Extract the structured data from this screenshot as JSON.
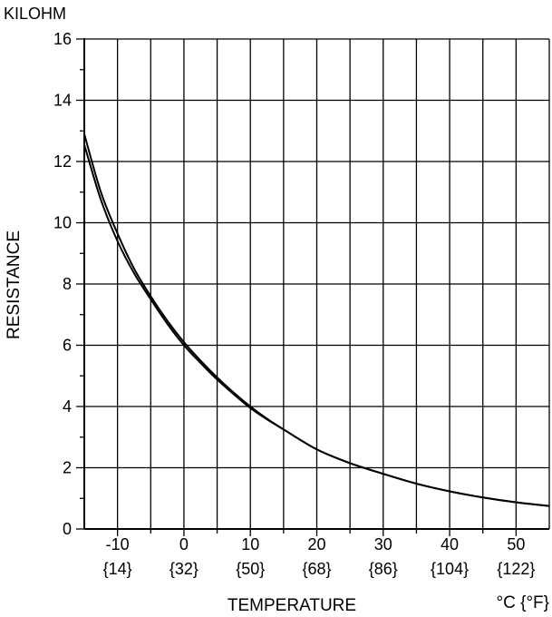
{
  "chart_data": {
    "type": "line",
    "title": "",
    "xlabel": "TEMPERATURE",
    "x_unit_label": "°C {°F}",
    "ylabel": "RESISTANCE",
    "y_unit_label": "KILOHM",
    "xlim": [
      -15,
      55
    ],
    "ylim": [
      0,
      16
    ],
    "grid": true,
    "x_ticks": [
      {
        "value": -10,
        "label": "-10",
        "label_f": "{14}"
      },
      {
        "value": 0,
        "label": "0",
        "label_f": "{32}"
      },
      {
        "value": 10,
        "label": "10",
        "label_f": "{50}"
      },
      {
        "value": 20,
        "label": "20",
        "label_f": "{68}"
      },
      {
        "value": 30,
        "label": "30",
        "label_f": "{86}"
      },
      {
        "value": 40,
        "label": "40",
        "label_f": "{104}"
      },
      {
        "value": 50,
        "label": "50",
        "label_f": "{122}"
      }
    ],
    "y_ticks": [
      {
        "value": 0,
        "label": "0"
      },
      {
        "value": 2,
        "label": "2"
      },
      {
        "value": 4,
        "label": "4"
      },
      {
        "value": 6,
        "label": "6"
      },
      {
        "value": 8,
        "label": "8"
      },
      {
        "value": 10,
        "label": "10"
      },
      {
        "value": 12,
        "label": "12"
      },
      {
        "value": 14,
        "label": "14"
      },
      {
        "value": 16,
        "label": "16"
      }
    ],
    "series": [
      {
        "x": [
          -15,
          -12.5,
          -10,
          -7.5,
          -5,
          -2.5,
          0,
          2.5,
          5,
          7.5,
          10,
          12.5,
          15,
          20,
          25,
          30,
          35,
          40,
          45,
          50,
          55
        ],
        "values": [
          12.9,
          11.0,
          9.65,
          8.5,
          7.6,
          6.8,
          6.1,
          5.5,
          4.95,
          4.45,
          4.0,
          3.6,
          3.25,
          2.6,
          2.15,
          1.8,
          1.48,
          1.23,
          1.03,
          0.87,
          0.75
        ]
      },
      {
        "x": [
          -15,
          -12.5,
          -10,
          -7.5,
          -5,
          -2.5,
          0,
          2.5,
          5,
          7.5,
          10,
          12.5,
          15,
          20,
          25,
          30,
          35,
          40,
          45,
          50,
          55
        ],
        "values": [
          12.55,
          10.75,
          9.4,
          8.35,
          7.5,
          6.7,
          6.0,
          5.42,
          4.88,
          4.4,
          3.95,
          3.58,
          3.25,
          2.6,
          2.15,
          1.8,
          1.48,
          1.23,
          1.03,
          0.87,
          0.75
        ]
      }
    ]
  }
}
